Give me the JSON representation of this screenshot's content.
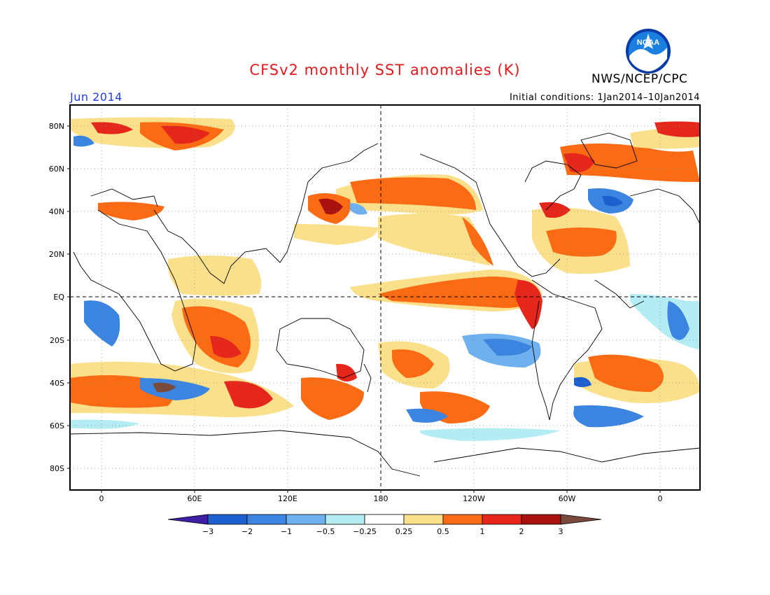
{
  "title": "CFSv2 monthly SST anomalies (K)",
  "agency": "NWS/NCEP/CPC",
  "logo_text": "NOAA",
  "month_label": "Jun 2014",
  "initial_conditions": "Initial conditions: 1Jan2014–10Jan2014",
  "lat_labels": [
    "80N",
    "60N",
    "40N",
    "20N",
    "EQ",
    "20S",
    "40S",
    "60S",
    "80S"
  ],
  "lon_labels": [
    "0",
    "60E",
    "120E",
    "180",
    "120W",
    "60W",
    "0"
  ],
  "colorbar": {
    "ticks": [
      "−3",
      "−2",
      "−1",
      "−0.5",
      "−0.25",
      "0.25",
      "0.5",
      "1",
      "2",
      "3"
    ],
    "colors": [
      "#3c1fa4",
      "#1e5fcf",
      "#3b85e0",
      "#6fb0ef",
      "#b4ecf4",
      "#ffffff",
      "#fbe08c",
      "#fb6b14",
      "#e5261a",
      "#a8110e"
    ],
    "under_color": "#3c1fa4",
    "over_color": "#7a4a3c"
  },
  "anomaly_colors": {
    "strong_warm": "#a8110e",
    "warm2": "#e5261a",
    "warm1": "#fb6b14",
    "warm05": "#fbe08c",
    "cold05": "#b4ecf4",
    "cold1": "#6fb0ef",
    "cold2": "#3b85e0",
    "strong_cold": "#1e5fcf",
    "extreme_warm": "#7a4a3c"
  }
}
